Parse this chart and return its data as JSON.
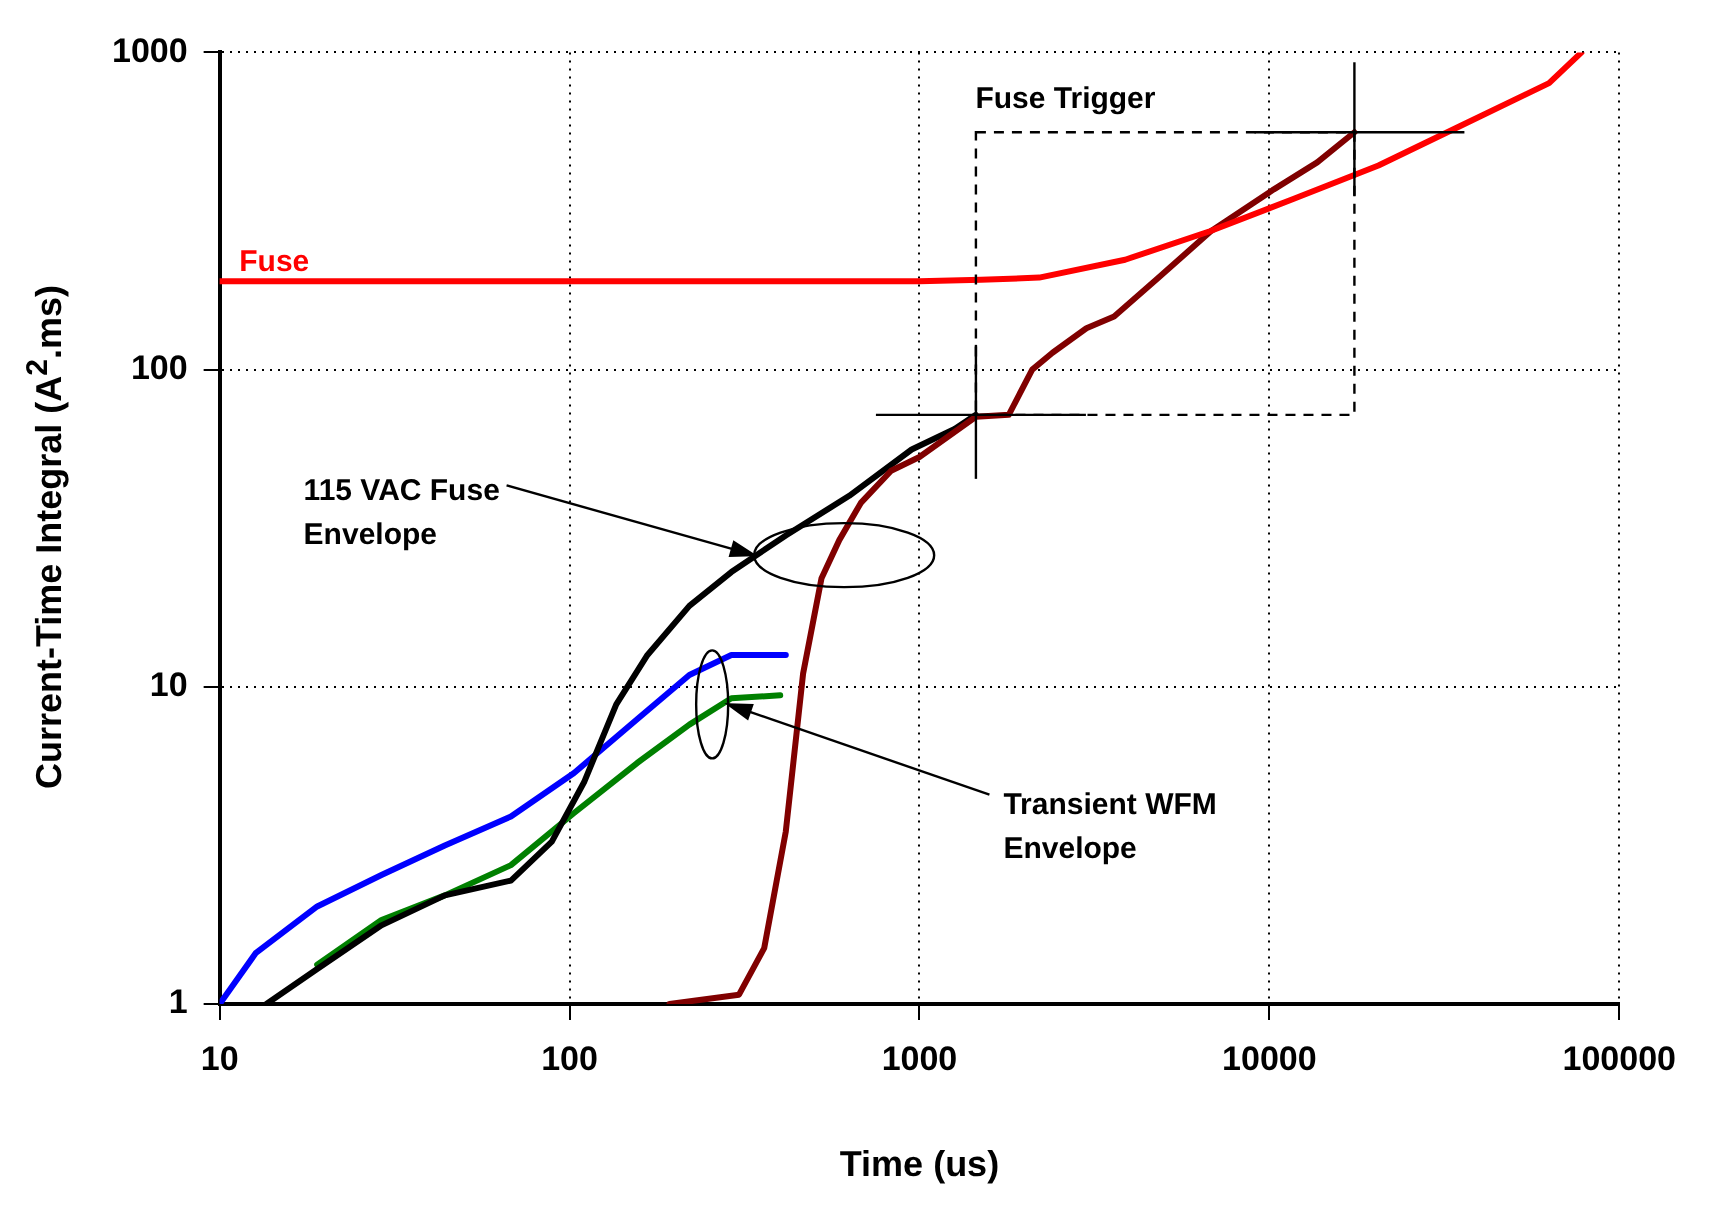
{
  "chart_data": {
    "type": "line",
    "xlabel": "Time (us)",
    "ylabel": "Current-Time Integral (A$^{2}$.ms)",
    "log": "xy",
    "xlim": [
      10,
      100000
    ],
    "xticks": [
      10,
      100,
      1000,
      10000,
      100000
    ],
    "ylim": [
      1,
      1000
    ],
    "yticks": [
      1,
      10,
      100,
      1000
    ],
    "grid": true,
    "legend": false,
    "marker": "none",
    "line_style": "solid",
    "series": [
      {
        "color": "#ff0000",
        "x": [
          10,
          100,
          1000,
          1500,
          2200,
          3870,
          6760,
          11700,
          20500,
          35000,
          63000,
          78000
        ],
        "values": [
          190,
          190,
          190,
          192,
          195,
          222,
          273,
          345,
          440,
          585,
          800,
          1000
        ]
      },
      {
        "color": "#800000",
        "x": [
          193,
          305,
          360,
          415,
          465,
          525,
          590,
          680,
          830,
          1000,
          1450,
          1800,
          2100,
          2400,
          3000,
          3600,
          4800,
          6800,
          10300,
          13700,
          17500
        ],
        "values": [
          1,
          1.07,
          1.5,
          3.5,
          11,
          22,
          29,
          38,
          48,
          53,
          71,
          72,
          100,
          113,
          135,
          147,
          194,
          273,
          370,
          450,
          560
        ]
      },
      {
        "color": "#000000",
        "x": [
          13.6,
          19,
          29,
          44,
          68,
          89,
          110,
          136,
          167,
          220,
          290,
          415,
          630,
          950,
          1260,
          1450
        ],
        "values": [
          1,
          1.29,
          1.77,
          2.2,
          2.45,
          3.25,
          5,
          8.8,
          12.6,
          18,
          23,
          30,
          40,
          56,
          65,
          72
        ]
      },
      {
        "color": "#0000ff",
        "x": [
          10,
          12.7,
          19,
          29,
          44,
          68,
          103,
          156,
          220,
          290,
          415
        ],
        "values": [
          1,
          1.45,
          2.03,
          2.55,
          3.16,
          3.9,
          5.35,
          7.9,
          10.9,
          12.6,
          12.6
        ]
      },
      {
        "color": "#008000",
        "x": [
          19,
          29,
          44,
          68,
          103,
          156,
          220,
          290,
          400
        ],
        "values": [
          1.33,
          1.84,
          2.2,
          2.74,
          4.0,
          5.75,
          7.6,
          9.2,
          9.4
        ]
      }
    ],
    "annotations": [
      "Fuse",
      "Fuse Trigger",
      {
        "text": "115 VAC Fuse Envelope",
        "x": 337,
        "y": 26
      },
      {
        "text": "Transient WFM Envelope",
        "x": 284,
        "y": 8.8
      }
    ]
  }
}
